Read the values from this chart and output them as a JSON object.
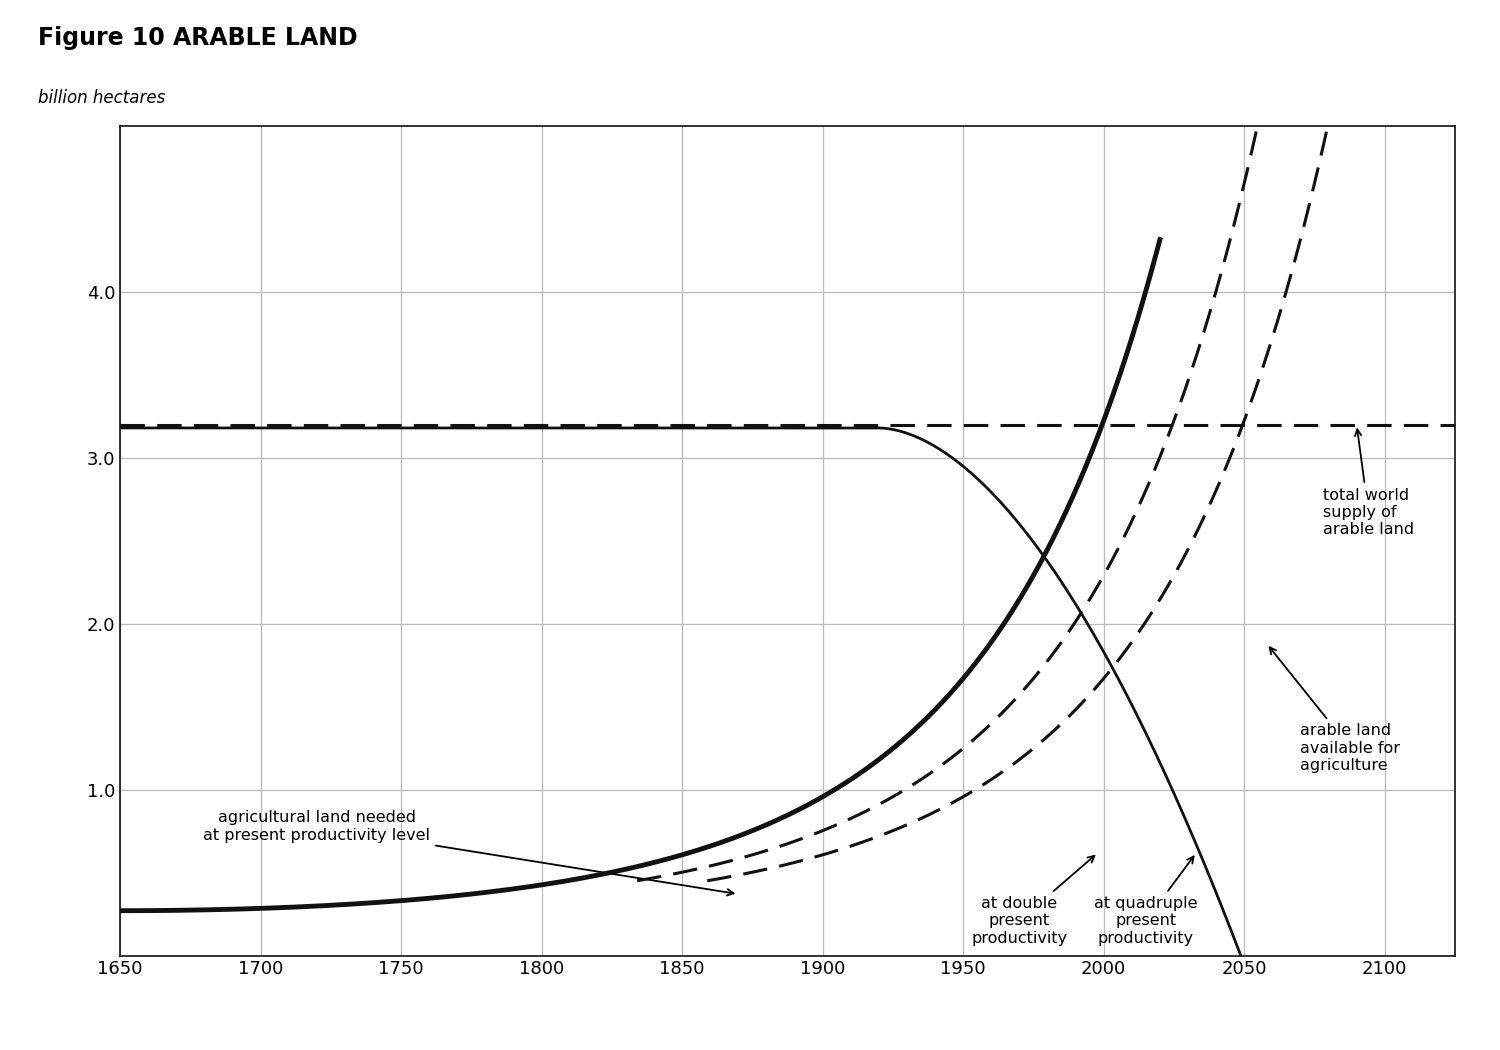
{
  "title": "Figure 10 ARABLE LAND",
  "ylabel": "billion hectares",
  "xlim": [
    1650,
    2125
  ],
  "ylim": [
    0,
    5.0
  ],
  "xticks": [
    1650,
    1700,
    1750,
    1800,
    1850,
    1900,
    1950,
    2000,
    2050,
    2100
  ],
  "yticks": [
    1.0,
    2.0,
    3.0,
    4.0
  ],
  "total_supply": 3.2,
  "background_color": "#ffffff",
  "grid_color": "#bbbbbb",
  "line_color": "#111111"
}
